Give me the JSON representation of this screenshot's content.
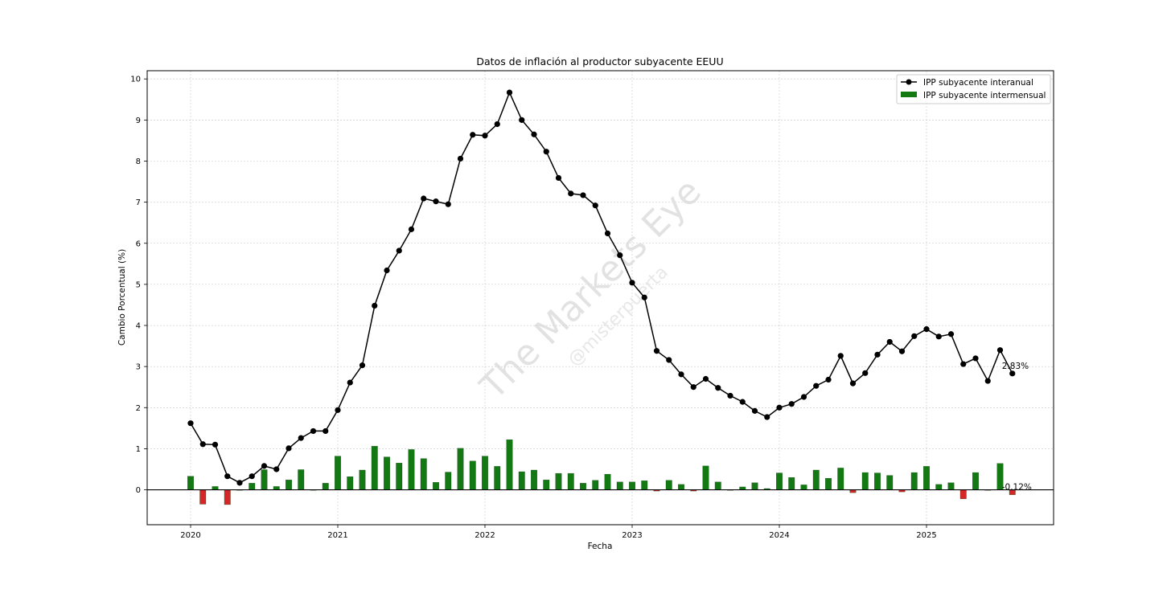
{
  "chart_data": {
    "type": "line",
    "title": "Datos de inflación al productor subyacente EEUU",
    "xlabel": "Fecha",
    "ylabel": "Cambio Porcentual (%)",
    "ylim": [
      -0.85,
      10.2
    ],
    "yticks": [
      0,
      1,
      2,
      3,
      4,
      5,
      6,
      7,
      8,
      9,
      10
    ],
    "xticks": [
      "2020",
      "2021",
      "2022",
      "2023",
      "2024",
      "2025"
    ],
    "grid": true,
    "legend_position": "top-right",
    "watermark": [
      "The Markets Eye",
      "@misterpuerta"
    ],
    "colors": {
      "line": "#000000",
      "bar_positive": "#137a13",
      "bar_negative": "#d62728",
      "zero_line": "#000000"
    },
    "series": [
      {
        "name": "IPP subyacente interanual",
        "type": "line",
        "start": "2020-01",
        "values": [
          1.62,
          1.11,
          1.1,
          0.33,
          0.17,
          0.33,
          0.58,
          0.5,
          1.01,
          1.26,
          1.43,
          1.43,
          1.94,
          2.61,
          3.03,
          4.48,
          5.34,
          5.82,
          6.34,
          7.09,
          7.02,
          6.95,
          8.06,
          8.64,
          8.62,
          8.9,
          9.67,
          9.0,
          8.65,
          8.23,
          7.59,
          7.21,
          7.17,
          6.92,
          6.24,
          5.71,
          5.04,
          4.68,
          3.38,
          3.16,
          2.81,
          2.5,
          2.7,
          2.48,
          2.29,
          2.14,
          1.92,
          1.77,
          2.0,
          2.09,
          2.26,
          2.53,
          2.68,
          3.26,
          2.59,
          2.84,
          3.29,
          3.6,
          3.37,
          3.74,
          3.91,
          3.73,
          3.79,
          3.06,
          3.2,
          2.65,
          3.4,
          2.83
        ]
      },
      {
        "name": "IPP subyacente intermensual",
        "type": "bar",
        "start": "2020-01",
        "values": [
          0.33,
          -0.35,
          0.08,
          -0.36,
          0.0,
          0.16,
          0.49,
          0.08,
          0.24,
          0.49,
          0.0,
          0.16,
          0.82,
          0.32,
          0.48,
          1.06,
          0.8,
          0.65,
          0.98,
          0.76,
          0.18,
          0.43,
          1.01,
          0.7,
          0.82,
          0.57,
          1.22,
          0.44,
          0.48,
          0.24,
          0.4,
          0.4,
          0.16,
          0.23,
          0.38,
          0.19,
          0.19,
          0.22,
          -0.03,
          0.23,
          0.13,
          -0.03,
          0.58,
          0.19,
          -0.01,
          0.07,
          0.17,
          0.03,
          0.41,
          0.3,
          0.12,
          0.48,
          0.28,
          0.53,
          -0.07,
          0.42,
          0.41,
          0.35,
          -0.05,
          0.42,
          0.57,
          0.13,
          0.17,
          -0.22,
          0.42,
          -0.01,
          0.64,
          -0.12
        ]
      }
    ],
    "annotations": [
      {
        "label": "2.83%",
        "x": "2025-08",
        "y": 2.83
      },
      {
        "label": "-0.12%",
        "x": "2025-08",
        "y": -0.12
      }
    ]
  }
}
